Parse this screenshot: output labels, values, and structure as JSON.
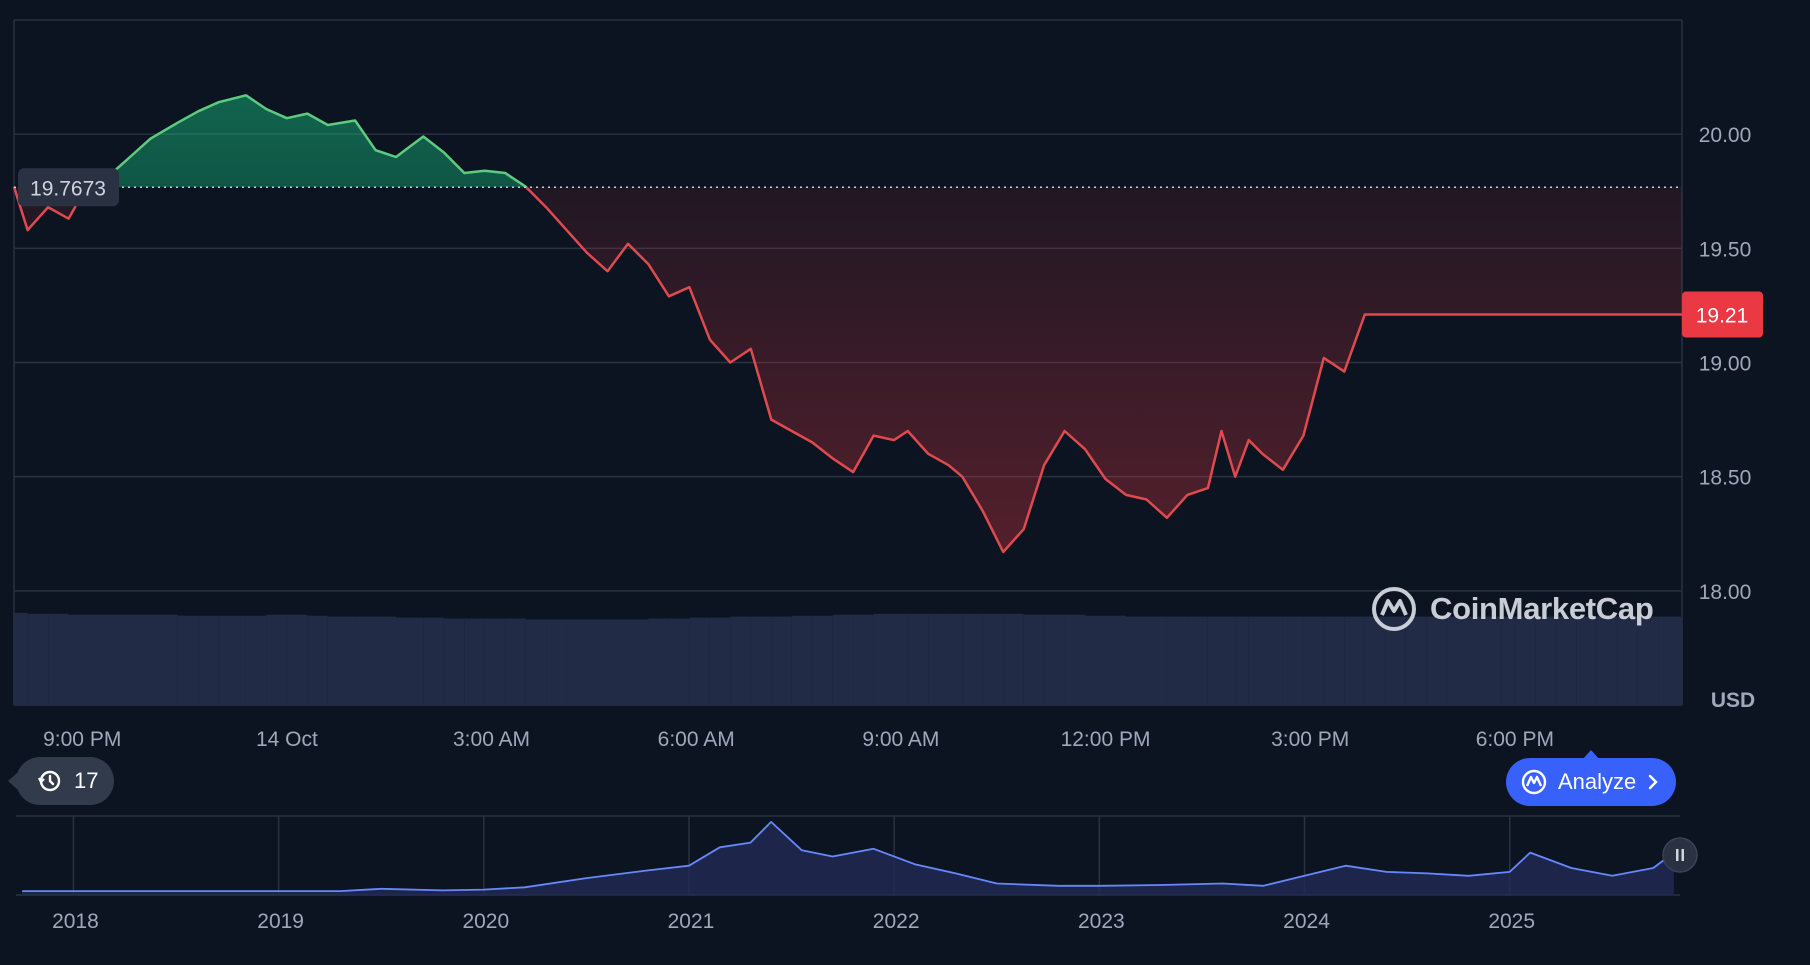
{
  "chart_data": [
    {
      "type": "area",
      "title": "",
      "currency_label": "USD",
      "reference_price": 19.7673,
      "reference_label": "19.7673",
      "current_price_label": "19.21",
      "ylim": [
        17.5,
        20.5
      ],
      "y_ticks": [
        {
          "value": 20.0,
          "label": "20.00"
        },
        {
          "value": 19.5,
          "label": "19.50"
        },
        {
          "value": 19.0,
          "label": "19.00"
        },
        {
          "value": 18.5,
          "label": "18.50"
        },
        {
          "value": 18.0,
          "label": "18.00"
        }
      ],
      "x_range_hours": [
        -4.0,
        20.45
      ],
      "x_ticks": [
        {
          "hour": -3.0,
          "label": "9:00 PM"
        },
        {
          "hour": 0.0,
          "label": "14 Oct"
        },
        {
          "hour": 3.0,
          "label": "3:00 AM"
        },
        {
          "hour": 6.0,
          "label": "6:00 AM"
        },
        {
          "hour": 9.0,
          "label": "9:00 AM"
        },
        {
          "hour": 12.0,
          "label": "12:00 PM"
        },
        {
          "hour": 15.0,
          "label": "3:00 PM"
        },
        {
          "hour": 18.0,
          "label": "6:00 PM"
        }
      ],
      "x_hours_from_14_oct": [
        -4.0,
        -3.8,
        -3.5,
        -3.2,
        -2.9,
        -2.6,
        -2.3,
        -2.0,
        -1.6,
        -1.3,
        -1.0,
        -0.6,
        -0.3,
        0.0,
        0.3,
        0.6,
        1.0,
        1.3,
        1.6,
        2.0,
        2.3,
        2.6,
        2.9,
        3.2,
        3.5,
        3.8,
        4.1,
        4.4,
        4.7,
        5.0,
        5.3,
        5.6,
        5.9,
        6.2,
        6.5,
        6.8,
        7.1,
        7.4,
        7.7,
        8.0,
        8.3,
        8.6,
        8.9,
        9.1,
        9.4,
        9.7,
        9.9,
        10.2,
        10.5,
        10.8,
        11.1,
        11.4,
        11.7,
        12.0,
        12.3,
        12.6,
        12.9,
        13.2,
        13.5,
        13.7,
        13.9,
        14.1,
        14.3,
        14.6,
        14.9,
        15.2,
        15.5,
        15.8,
        16.1,
        16.4,
        16.7,
        17.0,
        17.3,
        17.6,
        17.8,
        18.0,
        18.3,
        18.6,
        18.9,
        19.2,
        19.5,
        19.8,
        20.1,
        20.45
      ],
      "price": [
        19.77,
        19.58,
        19.68,
        19.63,
        19.79,
        19.82,
        19.9,
        19.98,
        20.05,
        20.1,
        20.14,
        20.17,
        20.11,
        20.07,
        20.09,
        20.04,
        20.06,
        19.93,
        19.9,
        19.99,
        19.92,
        19.83,
        19.84,
        19.83,
        19.77,
        19.68,
        19.58,
        19.48,
        19.4,
        19.52,
        19.43,
        19.29,
        19.33,
        19.1,
        19.0,
        19.06,
        18.75,
        18.7,
        18.65,
        18.58,
        18.52,
        18.68,
        18.66,
        18.7,
        18.6,
        18.55,
        18.5,
        18.35,
        18.17,
        18.27,
        18.55,
        18.7,
        18.62,
        18.49,
        18.42,
        18.4,
        18.32,
        18.42,
        18.45,
        18.7,
        18.5,
        18.66,
        18.6,
        18.53,
        18.68,
        19.02,
        18.96,
        19.21,
        19.21,
        19.21,
        19.21,
        19.21,
        19.21,
        19.21,
        19.21,
        19.21,
        19.21,
        19.21,
        19.21,
        19.21,
        19.21,
        19.21,
        19.21,
        19.21
      ],
      "volume_relative": [
        0.97,
        0.96,
        0.96,
        0.95,
        0.95,
        0.95,
        0.95,
        0.95,
        0.94,
        0.94,
        0.94,
        0.94,
        0.95,
        0.95,
        0.94,
        0.93,
        0.93,
        0.93,
        0.92,
        0.92,
        0.91,
        0.91,
        0.91,
        0.91,
        0.9,
        0.9,
        0.9,
        0.9,
        0.9,
        0.9,
        0.91,
        0.91,
        0.92,
        0.92,
        0.93,
        0.93,
        0.93,
        0.94,
        0.94,
        0.95,
        0.95,
        0.96,
        0.96,
        0.96,
        0.96,
        0.96,
        0.96,
        0.96,
        0.96,
        0.95,
        0.95,
        0.95,
        0.94,
        0.94,
        0.93,
        0.93,
        0.93,
        0.93,
        0.93,
        0.93,
        0.93,
        0.93,
        0.93,
        0.93,
        0.93,
        0.93,
        0.93,
        0.93,
        0.93,
        0.93,
        0.93,
        0.93,
        0.93,
        0.93,
        0.93,
        0.93,
        0.93,
        0.93,
        0.93,
        0.93,
        0.93,
        0.93,
        0.93,
        0.93
      ],
      "grid": true,
      "colors": {
        "up": "#16c784",
        "down": "#ea3943",
        "line_up": "#5ecb7f",
        "line_down": "#e04a4f",
        "volume": "#222b45",
        "grid": "#2a3142",
        "background": "#0d1421"
      }
    },
    {
      "type": "area",
      "title": "",
      "x_years": [
        2017.75,
        2018.0,
        2018.5,
        2019.0,
        2019.3,
        2019.5,
        2019.8,
        2020.0,
        2020.2,
        2020.5,
        2020.8,
        2021.0,
        2021.15,
        2021.3,
        2021.4,
        2021.55,
        2021.7,
        2021.9,
        2022.1,
        2022.3,
        2022.5,
        2022.8,
        2023.0,
        2023.3,
        2023.6,
        2023.8,
        2024.0,
        2024.2,
        2024.4,
        2024.6,
        2024.8,
        2025.0,
        2025.1,
        2025.3,
        2025.5,
        2025.7,
        2025.8
      ],
      "price_relative": [
        0.05,
        0.05,
        0.05,
        0.05,
        0.05,
        0.08,
        0.06,
        0.07,
        0.1,
        0.22,
        0.32,
        0.38,
        0.62,
        0.68,
        0.95,
        0.58,
        0.5,
        0.6,
        0.4,
        0.28,
        0.15,
        0.12,
        0.12,
        0.13,
        0.15,
        0.12,
        0.25,
        0.38,
        0.3,
        0.28,
        0.25,
        0.3,
        0.55,
        0.35,
        0.25,
        0.35,
        0.55
      ],
      "x_ticks": [
        "2018",
        "2019",
        "2020",
        "2021",
        "2022",
        "2023",
        "2024",
        "2025"
      ],
      "colors": {
        "line": "#6688ff",
        "fill": "#222b55"
      }
    }
  ],
  "controls": {
    "history_count": "17",
    "analyze_label": "Analyze",
    "brand_name": "CoinMarketCap"
  },
  "icons": {
    "history": "clock-history-icon",
    "analyze": "chart-logo-icon",
    "chevron": "chevron-right-icon",
    "pause": "pause-handle-icon",
    "brand": "cmc-logo-icon"
  }
}
